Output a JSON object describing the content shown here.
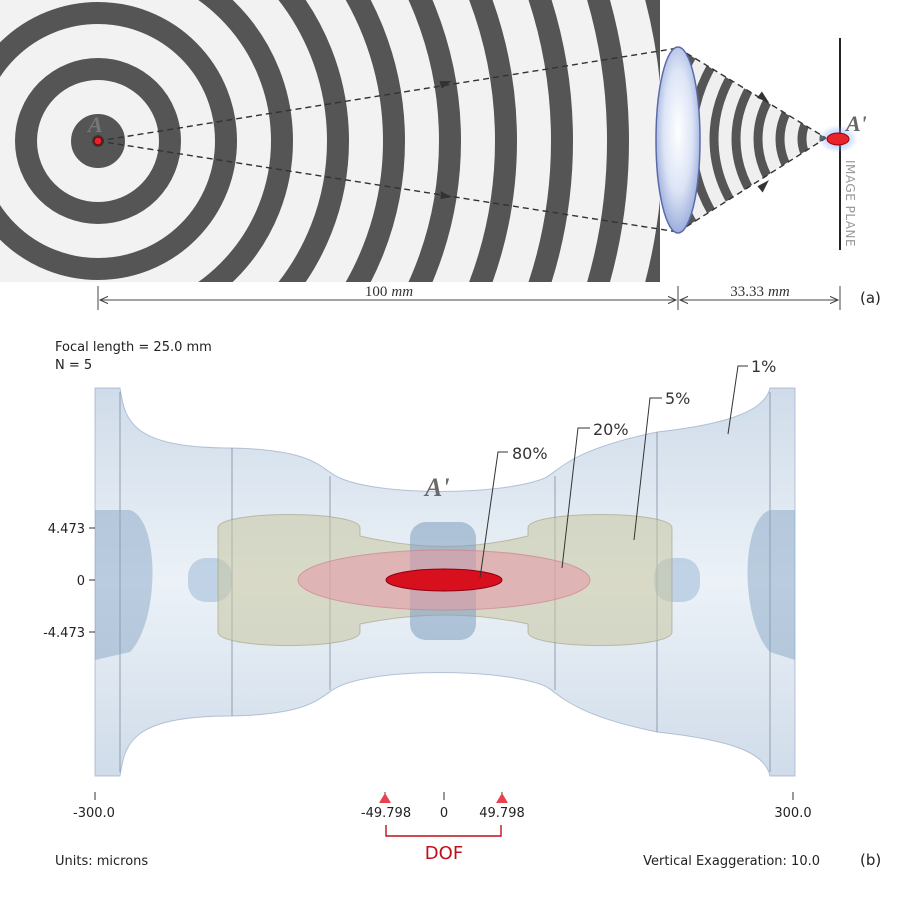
{
  "panel_a": {
    "source_label": "A",
    "image_label": "A'",
    "image_plane_label": "IMAGE PLANE",
    "object_distance": "100",
    "object_distance_unit": "mm",
    "image_distance": "33.33",
    "image_distance_unit": "mm",
    "panel_label": "(a)"
  },
  "panel_b": {
    "focal_length_text": "Focal length = 25.0 mm",
    "f_number_text": "N = 5",
    "image_label": "A'",
    "contour_labels": [
      "1%",
      "5%",
      "20%",
      "80%"
    ],
    "y_ticks": [
      "4.473",
      "0",
      "-4.473"
    ],
    "x_ticks": [
      "-300.0",
      "-49.798",
      "0",
      "49.798",
      "300.0"
    ],
    "dof_label": "DOF",
    "units_text": "Units: microns",
    "exaggeration_text": "Vertical Exaggeration: 10.0",
    "panel_label": "(b)"
  },
  "colors": {
    "wave_dark": "#3a3a3a",
    "lens_blue": "#c9d6f0",
    "focus_red": "#e8242a",
    "volume_blue": "#9bb6d2",
    "volume_olive": "#c9c8a4",
    "volume_pink": "#e3a3ab",
    "dof_red": "#d0101a"
  }
}
